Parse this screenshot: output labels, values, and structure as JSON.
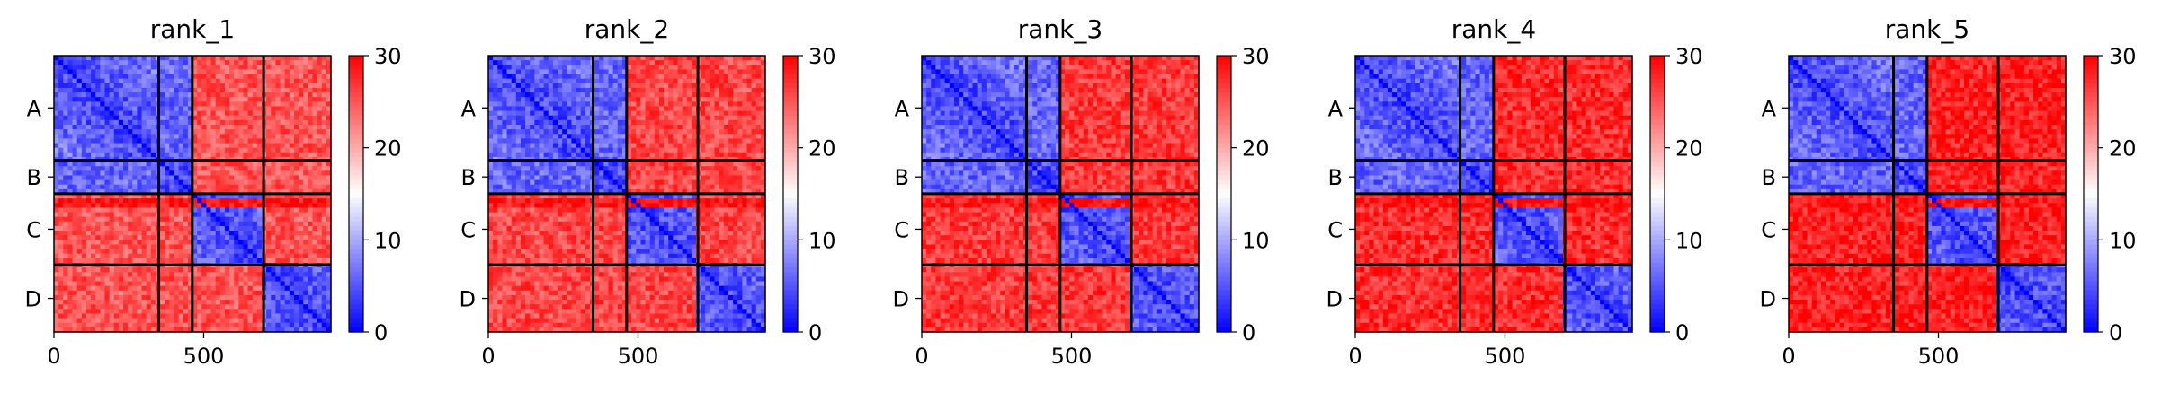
{
  "chart_data": [
    {
      "type": "heatmap",
      "title": "rank_1",
      "row_labels": [
        "A",
        "B",
        "C",
        "D"
      ],
      "x_ticks": [
        0,
        500
      ],
      "colorbar_ticks": [
        0,
        10,
        20,
        30
      ],
      "vmin": 0,
      "vmax": 30,
      "colormap": "bwr",
      "variant": 0
    },
    {
      "type": "heatmap",
      "title": "rank_2",
      "row_labels": [
        "A",
        "B",
        "C",
        "D"
      ],
      "x_ticks": [
        0,
        500
      ],
      "colorbar_ticks": [
        0,
        10,
        20,
        30
      ],
      "vmin": 0,
      "vmax": 30,
      "colormap": "bwr",
      "variant": 1
    },
    {
      "type": "heatmap",
      "title": "rank_3",
      "row_labels": [
        "A",
        "B",
        "C",
        "D"
      ],
      "x_ticks": [
        0,
        500
      ],
      "colorbar_ticks": [
        0,
        10,
        20,
        30
      ],
      "vmin": 0,
      "vmax": 30,
      "colormap": "bwr",
      "variant": 2
    },
    {
      "type": "heatmap",
      "title": "rank_4",
      "row_labels": [
        "A",
        "B",
        "C",
        "D"
      ],
      "x_ticks": [
        0,
        500
      ],
      "colorbar_ticks": [
        0,
        10,
        20,
        30
      ],
      "vmin": 0,
      "vmax": 30,
      "colormap": "bwr",
      "variant": 3
    },
    {
      "type": "heatmap",
      "title": "rank_5",
      "row_labels": [
        "A",
        "B",
        "C",
        "D"
      ],
      "x_ticks": [
        0,
        500
      ],
      "colorbar_ticks": [
        0,
        10,
        20,
        30
      ],
      "vmin": 0,
      "vmax": 30,
      "colormap": "bwr",
      "variant": 4
    }
  ],
  "chain_boundaries": [
    0,
    350,
    462,
    700,
    925
  ],
  "x_max": 925,
  "colors": {
    "low": "#0000ff",
    "mid": "#ffffff",
    "high": "#ff0000",
    "divider": "#000000"
  }
}
